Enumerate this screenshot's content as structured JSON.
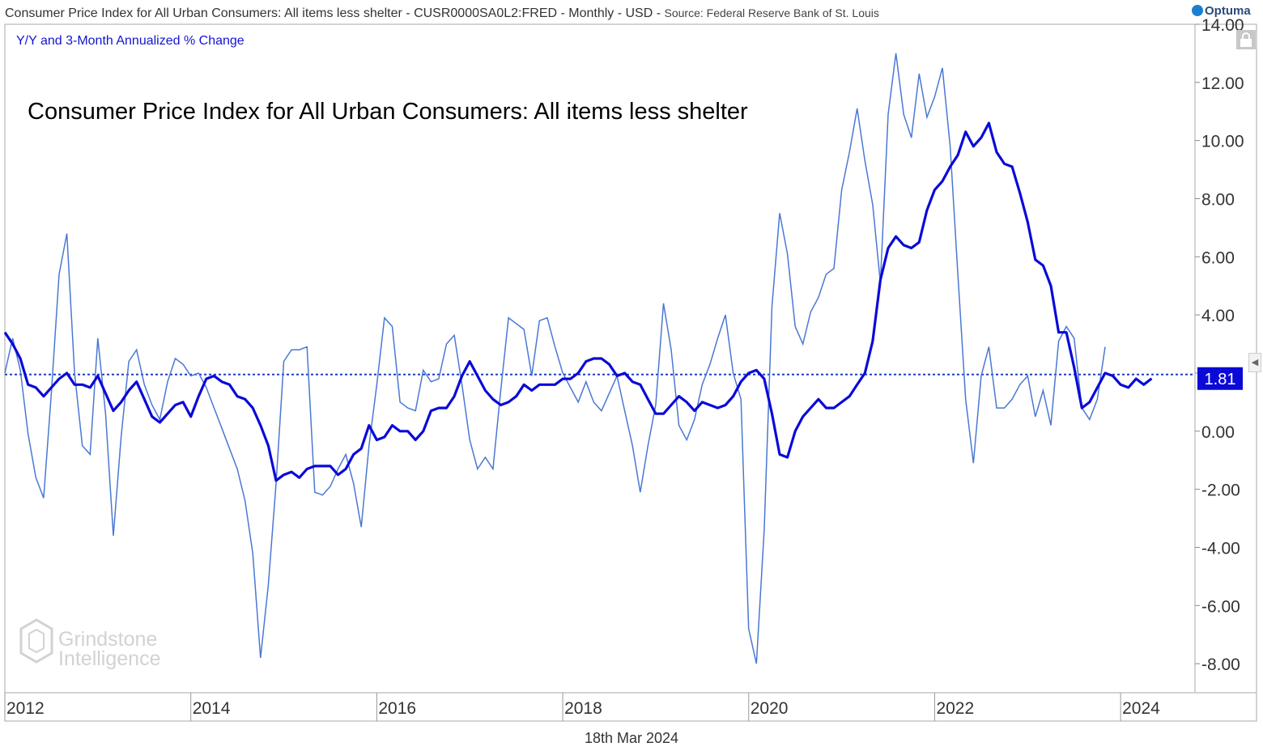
{
  "header": {
    "title": "Consumer Price Index for All Urban Consumers: All items less shelter - CUSR0000SA0L2:FRED - Monthly - USD",
    "source": "Source: Federal Reserve Bank of St. Louis",
    "logo": "Optuma"
  },
  "subtitle": "Y/Y and 3-Month Annualized % Change",
  "watermark": "Grindstone Intelligence",
  "date_label": "18th Mar 2024",
  "colors": {
    "yoy_line": "#0a0ad8",
    "annualized_line": "#4a78d4",
    "last_value_box": "#0a0ad8",
    "reference_line": "#1a3cc8"
  },
  "chart_data": {
    "type": "line",
    "title": "Consumer Price Index for All Urban Consumers: All items less shelter",
    "xlabel": "",
    "ylabel": "",
    "xlim": [
      2012.0,
      2024.8
    ],
    "ylim": [
      -9.0,
      14.0
    ],
    "x_ticks": [
      "2012",
      "2014",
      "2016",
      "2018",
      "2020",
      "2022",
      "2024"
    ],
    "y_ticks": [
      "-8.00",
      "-6.00",
      "-4.00",
      "-2.00",
      "0.00",
      "2.00",
      "4.00",
      "6.00",
      "8.00",
      "10.00",
      "12.00",
      "14.00"
    ],
    "reference_line": 1.95,
    "last_value_label": "1.81",
    "x_start": 2012.0,
    "x_step": 0.083333,
    "series": [
      {
        "values": [
          3.4,
          3.0,
          2.5,
          1.6,
          1.5,
          1.2,
          1.5,
          1.8,
          2.0,
          1.6,
          1.6,
          1.5,
          1.9,
          1.3,
          0.7,
          1.0,
          1.4,
          1.7,
          1.1,
          0.5,
          0.3,
          0.6,
          0.9,
          1.0,
          0.5,
          1.2,
          1.8,
          1.9,
          1.7,
          1.6,
          1.2,
          1.1,
          0.8,
          0.2,
          -0.5,
          -1.7,
          -1.5,
          -1.4,
          -1.6,
          -1.3,
          -1.2,
          -1.2,
          -1.2,
          -1.5,
          -1.3,
          -0.8,
          -0.6,
          0.2,
          -0.3,
          -0.2,
          0.2,
          0.0,
          0.0,
          -0.3,
          0.0,
          0.7,
          0.8,
          0.8,
          1.2,
          1.9,
          2.4,
          1.9,
          1.4,
          1.1,
          0.9,
          1.0,
          1.2,
          1.6,
          1.4,
          1.6,
          1.6,
          1.6,
          1.8,
          1.8,
          2.0,
          2.4,
          2.5,
          2.5,
          2.3,
          1.9,
          2.0,
          1.7,
          1.6,
          1.1,
          0.6,
          0.6,
          0.9,
          1.2,
          1.0,
          0.7,
          1.0,
          0.9,
          0.8,
          0.9,
          1.2,
          1.7,
          2.0,
          2.1,
          1.8,
          0.6,
          -0.8,
          -0.9,
          0.0,
          0.5,
          0.8,
          1.1,
          0.8,
          0.8,
          1.0,
          1.2,
          1.6,
          2.0,
          3.1,
          5.2,
          6.3,
          6.7,
          6.4,
          6.3,
          6.5,
          7.6,
          8.3,
          8.6,
          9.1,
          9.5,
          10.3,
          9.8,
          10.1,
          10.6,
          9.6,
          9.2,
          9.1,
          8.2,
          7.2,
          5.9,
          5.7,
          5.0,
          3.4,
          3.4,
          2.2,
          0.8,
          1.0,
          1.5,
          2.0,
          1.9,
          1.6,
          1.5,
          1.8,
          1.6,
          1.81
        ]
      },
      {
        "values": [
          2.0,
          3.2,
          2.1,
          -0.1,
          -1.6,
          -2.3,
          1.3,
          5.4,
          6.8,
          2.0,
          -0.5,
          -0.8,
          3.2,
          0.6,
          -3.6,
          -0.2,
          2.4,
          2.8,
          1.6,
          0.9,
          0.4,
          1.7,
          2.5,
          2.3,
          1.9,
          2.0,
          1.5,
          0.8,
          0.1,
          -0.6,
          -1.3,
          -2.4,
          -4.2,
          -7.8,
          -5.3,
          -1.8,
          2.4,
          2.8,
          2.8,
          2.9,
          -2.1,
          -2.2,
          -1.9,
          -1.3,
          -0.8,
          -1.8,
          -3.3,
          -0.5,
          1.6,
          3.9,
          3.6,
          1.0,
          0.8,
          0.7,
          2.1,
          1.7,
          1.8,
          3.0,
          3.3,
          1.6,
          -0.3,
          -1.3,
          -0.9,
          -1.3,
          1.4,
          3.9,
          3.7,
          3.5,
          1.9,
          3.8,
          3.9,
          2.9,
          2.0,
          1.5,
          1.0,
          1.7,
          1.0,
          0.7,
          1.3,
          1.9,
          0.7,
          -0.5,
          -2.1,
          -0.5,
          0.9,
          4.4,
          2.8,
          0.2,
          -0.3,
          0.4,
          1.6,
          2.3,
          3.2,
          4.0,
          2.0,
          1.1,
          -6.8,
          -8.0,
          -3.4,
          4.3,
          7.5,
          6.1,
          3.6,
          3.0,
          4.1,
          4.6,
          5.4,
          5.6,
          8.3,
          9.6,
          11.1,
          9.3,
          7.8,
          5.1,
          10.9,
          13.0,
          10.9,
          10.1,
          12.3,
          10.8,
          11.5,
          12.5,
          9.8,
          5.4,
          1.1,
          -1.1,
          1.9,
          2.9,
          0.8,
          0.8,
          1.1,
          1.6,
          1.9,
          0.5,
          1.4,
          0.2,
          3.1,
          3.6,
          3.2,
          0.8,
          0.4,
          1.1,
          2.9
        ]
      }
    ]
  }
}
